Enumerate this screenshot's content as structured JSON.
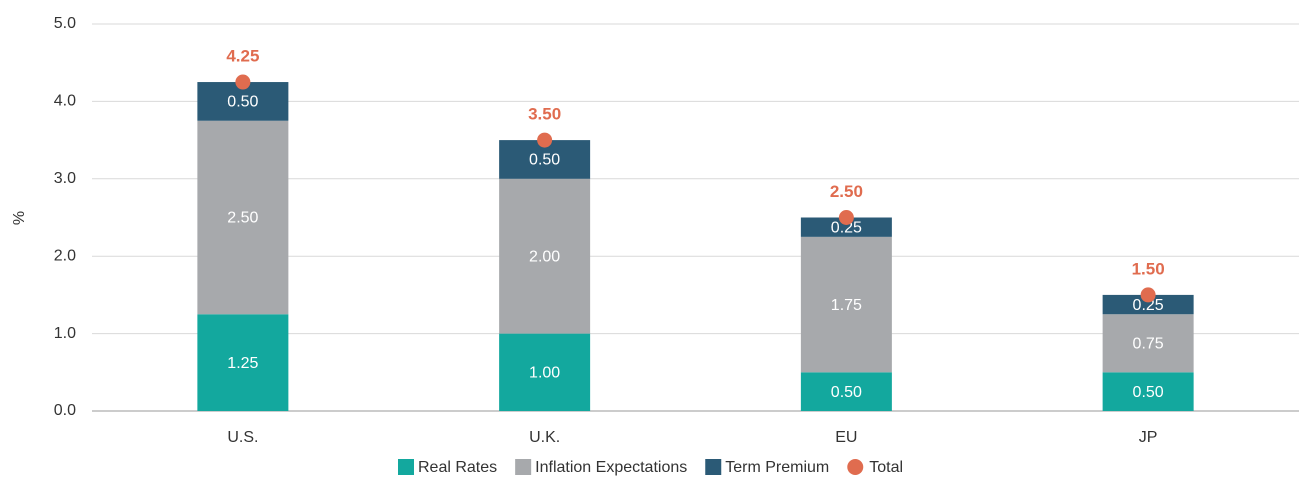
{
  "chart_data": {
    "type": "stacked_bar",
    "ylabel": "%",
    "categories": [
      "U.S.",
      "U.K.",
      "EU",
      "JP"
    ],
    "series": [
      {
        "name": "Real Rates",
        "color": "#13a89e",
        "values": [
          1.25,
          1.0,
          0.5,
          0.5
        ],
        "value_labels": [
          "1.25",
          "1.00",
          "0.50",
          "0.50"
        ]
      },
      {
        "name": "Inflation Expectations",
        "color": "#a7a9ac",
        "values": [
          2.5,
          2.0,
          1.75,
          0.75
        ],
        "value_labels": [
          "2.50",
          "2.00",
          "1.75",
          "0.75"
        ]
      },
      {
        "name": "Term Premium",
        "color": "#2b5a76",
        "values": [
          0.5,
          0.5,
          0.25,
          0.25
        ],
        "value_labels": [
          "0.50",
          "0.50",
          "0.25",
          "0.25"
        ]
      }
    ],
    "total": {
      "name": "Total",
      "color": "#e06c4f",
      "values": [
        4.25,
        3.5,
        2.5,
        1.5
      ],
      "value_labels": [
        "4.25",
        "3.50",
        "2.50",
        "1.50"
      ]
    },
    "ylim": [
      0,
      5
    ],
    "yticks": [
      {
        "value": 0,
        "label": "0.0"
      },
      {
        "value": 1,
        "label": "1.0"
      },
      {
        "value": 2,
        "label": "2.0"
      },
      {
        "value": 3,
        "label": "3.0"
      },
      {
        "value": 4,
        "label": "4.0"
      },
      {
        "value": 5,
        "label": "5.0"
      }
    ],
    "grid": true,
    "legend": "bottom"
  }
}
